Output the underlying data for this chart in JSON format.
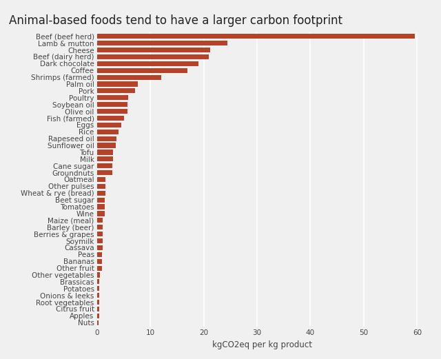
{
  "title": "Animal-based foods tend to have a larger carbon footprint",
  "xlabel": "kgCO2eq per kg product",
  "categories": [
    "Beef (beef herd)",
    "Lamb & mutton",
    "Cheese",
    "Beef (dairy herd)",
    "Dark chocolate",
    "Coffee",
    "Shrimps (farmed)",
    "Palm oil",
    "Pork",
    "Poultry",
    "Soybean oil",
    "Olive oil",
    "Fish (farmed)",
    "Eggs",
    "Rice",
    "Rapeseed oil",
    "Sunflower oil",
    "Tofu",
    "Milk",
    "Cane sugar",
    "Groundnuts",
    "Oatmeal",
    "Other pulses",
    "Wheat & rye (bread)",
    "Beet sugar",
    "Tomatoes",
    "Wine",
    "Maize (meal)",
    "Barley (beer)",
    "Berries & grapes",
    "Soymilk",
    "Cassava",
    "Peas",
    "Bananas",
    "Other fruit",
    "Other vegetables",
    "Brassicas",
    "Potatoes",
    "Onions & leeks",
    "Root vegetables",
    "Citrus fruit",
    "Apples",
    "Nuts"
  ],
  "values": [
    59.6,
    24.5,
    21.2,
    21.0,
    19.0,
    17.0,
    12.0,
    7.6,
    7.1,
    5.9,
    5.7,
    5.7,
    5.1,
    4.5,
    4.0,
    3.6,
    3.5,
    3.0,
    3.0,
    2.9,
    2.9,
    1.6,
    1.6,
    1.6,
    1.5,
    1.4,
    1.4,
    1.1,
    1.1,
    1.1,
    1.0,
    1.0,
    0.9,
    0.9,
    0.9,
    0.5,
    0.4,
    0.4,
    0.4,
    0.4,
    0.4,
    0.4,
    0.3
  ],
  "bar_color": "#b5432a",
  "background_color": "#f0f0f0",
  "title_fontsize": 12,
  "label_fontsize": 7.5,
  "xlabel_fontsize": 8.5,
  "xticks": [
    0,
    10,
    20,
    30,
    40,
    50,
    60
  ],
  "xlim": [
    0,
    62
  ]
}
